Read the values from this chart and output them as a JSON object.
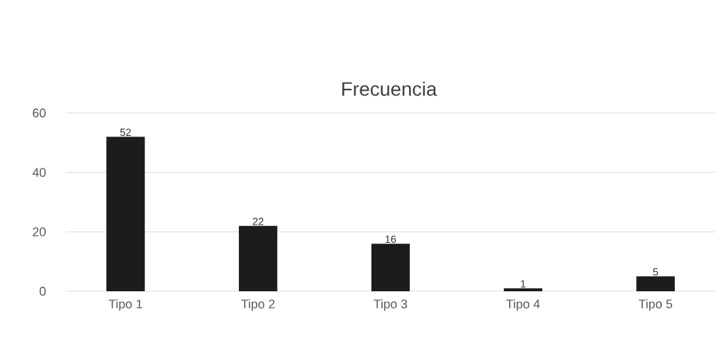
{
  "chart_data": {
    "type": "bar",
    "title": "Frecuencia",
    "categories": [
      "Tipo 1",
      "Tipo 2",
      "Tipo 3",
      "Tipo 4",
      "Tipo 5"
    ],
    "values": [
      52,
      22,
      16,
      1,
      5
    ],
    "color": "#1c1c1c",
    "ylim": [
      0,
      60
    ],
    "yticks": [
      0,
      20,
      40,
      60
    ],
    "grid": "y",
    "data_labels": true
  }
}
